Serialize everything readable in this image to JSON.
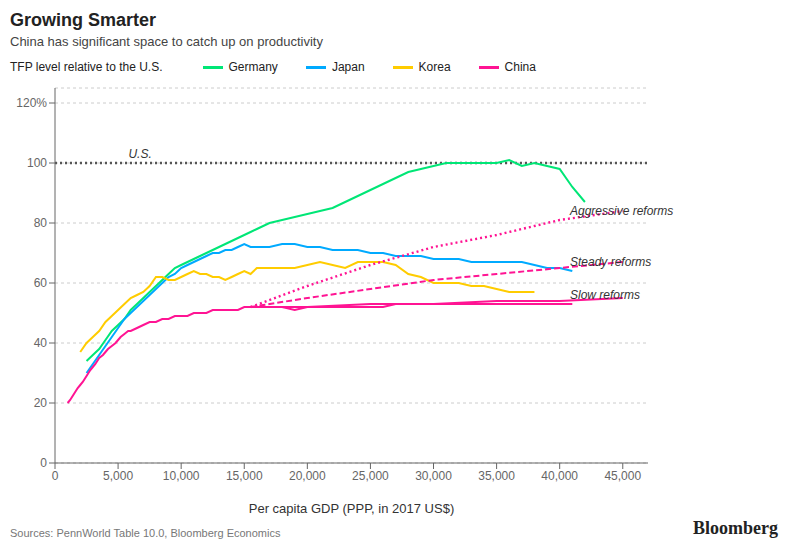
{
  "chart_data": {
    "type": "line",
    "title": "Growing Smarter",
    "subtitle": "China has significant space to catch up on productivity",
    "ylabel": "TFP level relative to the U.S.",
    "xlabel": "Per capita GDP (PPP, in 2017 US$)",
    "source": "Sources: PennWorld Table 10.0, Bloomberg Economics",
    "credit": "Bloomberg",
    "xlim": [
      0,
      47000
    ],
    "ylim": [
      0,
      125
    ],
    "xticks": [
      0,
      {
        "value": 5000,
        "label": "5,000"
      },
      {
        "value": 10000,
        "label": "10,000"
      },
      {
        "value": 15000,
        "label": "15,000"
      },
      {
        "value": 20000,
        "label": "20,000"
      },
      {
        "value": 25000,
        "label": "25,000"
      },
      {
        "value": 30000,
        "label": "30,000"
      },
      {
        "value": 35000,
        "label": "35,000"
      },
      {
        "value": 40000,
        "label": "40,000"
      },
      {
        "value": 45000,
        "label": "45,000"
      }
    ],
    "yticks": [
      0,
      20,
      40,
      60,
      80,
      100,
      {
        "value": 120,
        "label": "120%"
      }
    ],
    "grid": true,
    "series": [
      {
        "name": "Germany",
        "color": "#00e676",
        "line_style": "solid",
        "x": [
          2500,
          3000,
          3500,
          4000,
          4500,
          5000,
          5500,
          6000,
          6500,
          7000,
          7500,
          8000,
          8500,
          9000,
          9500,
          10000,
          10500,
          11000,
          11500,
          12000,
          12500,
          13000,
          13500,
          14000,
          14500,
          15000,
          15500,
          16000,
          17000,
          18000,
          19000,
          20000,
          21000,
          22000,
          23000,
          24000,
          25000,
          26000,
          27000,
          28000,
          29000,
          30000,
          31000,
          32000,
          33000,
          34000,
          35000,
          36000,
          37000,
          38000,
          39000,
          40000,
          41000,
          42000
        ],
        "values": [
          34,
          36,
          38,
          41,
          44,
          46,
          48,
          51,
          53,
          55,
          57,
          59,
          61,
          63,
          65,
          66,
          67,
          68,
          69,
          70,
          71,
          72,
          73,
          74,
          75,
          76,
          77,
          78,
          80,
          81,
          82,
          83,
          84,
          85,
          87,
          89,
          91,
          93,
          95,
          97,
          98,
          99,
          100,
          100,
          100,
          100,
          100,
          101,
          99,
          100,
          99,
          98,
          92,
          87
        ]
      },
      {
        "name": "Japan",
        "color": "#00aaff",
        "line_style": "solid",
        "x": [
          2500,
          3000,
          3500,
          4000,
          4500,
          5000,
          5500,
          6000,
          6500,
          7000,
          7500,
          8000,
          8500,
          9000,
          9500,
          10000,
          10500,
          11000,
          11500,
          12000,
          12500,
          13000,
          13500,
          14000,
          14500,
          15000,
          15500,
          16000,
          17000,
          18000,
          19000,
          20000,
          21000,
          22000,
          23000,
          24000,
          25000,
          26000,
          27000,
          28000,
          29000,
          30000,
          31000,
          32000,
          33000,
          34000,
          35000,
          36000,
          37000,
          38000,
          39000,
          40000,
          41000
        ],
        "values": [
          30,
          33,
          36,
          39,
          42,
          45,
          48,
          50,
          52,
          54,
          56,
          58,
          60,
          62,
          63,
          65,
          66,
          67,
          68,
          69,
          70,
          70,
          71,
          71,
          72,
          73,
          72,
          72,
          72,
          73,
          73,
          72,
          72,
          71,
          71,
          71,
          70,
          70,
          69,
          69,
          69,
          68,
          68,
          68,
          67,
          67,
          67,
          67,
          67,
          66,
          65,
          65,
          64
        ]
      },
      {
        "name": "Korea",
        "color": "#ffcc00",
        "line_style": "solid",
        "x": [
          2000,
          2500,
          3000,
          3500,
          4000,
          4500,
          5000,
          5500,
          6000,
          6500,
          7000,
          7500,
          8000,
          8500,
          9000,
          9500,
          10000,
          10500,
          11000,
          11500,
          12000,
          12500,
          13000,
          13500,
          14000,
          14500,
          15000,
          15500,
          16000,
          17000,
          18000,
          19000,
          20000,
          21000,
          22000,
          23000,
          24000,
          25000,
          26000,
          27000,
          28000,
          29000,
          30000,
          31000,
          32000,
          33000,
          34000,
          35000,
          36000,
          37000,
          38000
        ],
        "values": [
          37,
          40,
          42,
          44,
          47,
          49,
          51,
          53,
          55,
          56,
          57,
          59,
          62,
          62,
          61,
          61,
          62,
          63,
          64,
          63,
          63,
          62,
          62,
          61,
          62,
          63,
          64,
          63,
          65,
          65,
          65,
          65,
          66,
          67,
          66,
          65,
          67,
          67,
          67,
          66,
          63,
          62,
          60,
          60,
          60,
          59,
          59,
          58,
          57,
          57,
          57
        ]
      },
      {
        "name": "China",
        "color": "#ff1493",
        "line_style": "solid",
        "x": [
          1000,
          1200,
          1500,
          1800,
          2000,
          2200,
          2500,
          2800,
          3000,
          3200,
          3500,
          3800,
          4000,
          4200,
          4500,
          4800,
          5000,
          5200,
          5500,
          5800,
          6000,
          6500,
          7000,
          7500,
          8000,
          8500,
          9000,
          9500,
          10000,
          10500,
          11000,
          11500,
          12000,
          12500,
          13000,
          13500,
          14000,
          14500,
          15000,
          15500,
          16000,
          17000,
          18000,
          19000,
          20000,
          21000,
          22000,
          23000,
          24000,
          25000,
          26000,
          27000,
          28000,
          29000,
          30000,
          31000,
          32000,
          33000,
          34000,
          35000,
          36000,
          37000,
          38000,
          39000,
          40000,
          41000
        ],
        "values": [
          20,
          21,
          23,
          25,
          26,
          27,
          29,
          31,
          32,
          33,
          35,
          36,
          37,
          38,
          39,
          40,
          41,
          42,
          43,
          44,
          44,
          45,
          46,
          47,
          47,
          48,
          48,
          49,
          49,
          49,
          50,
          50,
          50,
          51,
          51,
          51,
          51,
          51,
          52,
          52,
          52,
          52,
          52,
          51,
          52,
          52,
          52,
          52,
          52,
          52,
          52,
          53,
          53,
          53,
          53,
          53,
          53,
          53,
          53,
          53,
          53,
          53,
          53,
          53,
          53,
          53
        ]
      },
      {
        "name": "China",
        "color": "#ff1493",
        "line_style": "solid",
        "x": [
          15500,
          20000,
          25000,
          30000,
          35000,
          40000,
          45000
        ],
        "values": [
          52,
          52,
          53,
          53,
          54,
          54,
          55
        ]
      },
      {
        "name": "China",
        "color": "#ff1493",
        "line_style": "dashed",
        "x": [
          15500,
          20000,
          25000,
          30000,
          35000,
          40000,
          45000
        ],
        "values": [
          52,
          55,
          58,
          61,
          63,
          65,
          67
        ]
      },
      {
        "name": "China",
        "color": "#ff1493",
        "line_style": "dotted",
        "x": [
          15500,
          20000,
          25000,
          30000,
          35000,
          40000,
          45000
        ],
        "values": [
          52,
          59,
          66,
          72,
          76,
          81,
          84
        ]
      }
    ],
    "hlines": [
      {
        "value": 100,
        "line_style": "dotted"
      }
    ],
    "annotations": [
      {
        "text": "Aggressive reforms",
        "x": 40500,
        "y": 84
      },
      {
        "text": "Steady reforms",
        "x": 40500,
        "y": 67
      },
      {
        "text": "Slow reforms",
        "x": 40500,
        "y": 56
      },
      {
        "text": "U.S.",
        "x": 5500,
        "y": 103
      }
    ]
  }
}
